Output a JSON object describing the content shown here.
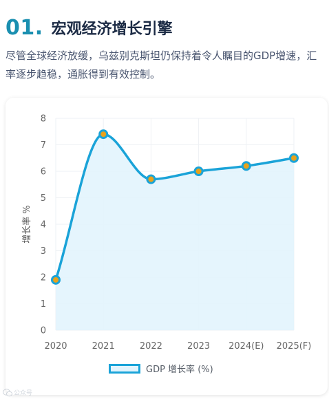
{
  "header": {
    "number": "01.",
    "title": "宏观经济增长引擎"
  },
  "description": "尽管全球经济放缓，乌兹别克斯坦仍保持着令人瞩目的GDP增速，汇率逐步趋稳，通胀得到有效控制。",
  "colors": {
    "accent": "#1a8fb0",
    "title": "#1b2a44",
    "line": "#1aa3d8",
    "fill": "#e2f4fd",
    "point": "#e8a21c"
  },
  "chart_data": {
    "type": "line",
    "categories": [
      "2020",
      "2021",
      "2022",
      "2023",
      "2024(E)",
      "2025(F)"
    ],
    "series": [
      {
        "name": "GDP 增长率 (%)",
        "values": [
          1.9,
          7.4,
          5.7,
          6.0,
          6.2,
          6.5
        ]
      }
    ],
    "ylabel": "增长率 %",
    "xlabel": "",
    "ylim": [
      0,
      8
    ],
    "yticks": [
      "0",
      "1",
      "2",
      "3",
      "4",
      "5",
      "6",
      "7",
      "8"
    ],
    "smooth": true,
    "area_fill": true,
    "grid": true,
    "legend": "bottom"
  },
  "watermark": {
    "text": "公众号"
  }
}
